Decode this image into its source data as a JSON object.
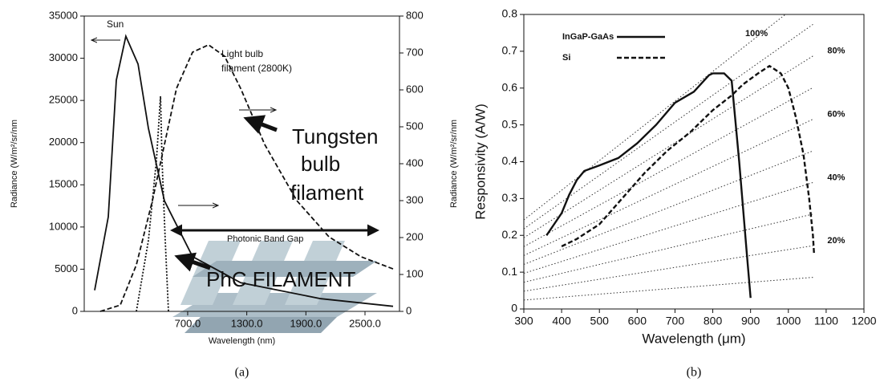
{
  "chart_data": [
    {
      "type": "line",
      "caption": "(a)",
      "xlabel": "Wavelength (nm)",
      "ylabel": "Radiance (W/m²/sr/nm",
      "y2label": "Radiance (W/m²/sr/nm",
      "xlim": [
        -350,
        2850
      ],
      "xticks": [
        {
          "value": 700,
          "label": "700.0"
        },
        {
          "value": 1300,
          "label": "1300.0"
        },
        {
          "value": 1900,
          "label": "1900.0"
        },
        {
          "value": 2500,
          "label": "2500.0"
        }
      ],
      "ylim": [
        0,
        35000
      ],
      "yticks": [
        0,
        5000,
        10000,
        15000,
        20000,
        25000,
        30000,
        35000
      ],
      "y2lim": [
        0,
        800
      ],
      "y2ticks": [
        0,
        100,
        200,
        300,
        400,
        500,
        600,
        700,
        800
      ],
      "annotations": [
        "Sun",
        "Light bulb",
        "filament (2800K)",
        "Tungsten",
        "bulb",
        "filament",
        "Photonic Band Gap",
        "PhC FILAMENT"
      ],
      "series": [
        {
          "color": "#111111",
          "style": "solid",
          "x": [
            -244,
            -106,
            -24,
            73,
            196,
            301,
            464,
            749,
            1238,
            2052,
            2785
          ],
          "values": [
            2500,
            11200,
            27400,
            32600,
            29300,
            21700,
            13100,
            6500,
            3400,
            1500,
            600
          ]
        },
        {
          "color": "#111111",
          "style": "dashed",
          "axis": "y2",
          "x": [
            -187,
            16,
            179,
            342,
            464,
            586,
            749,
            912,
            1075,
            1238,
            1482,
            1808,
            2134,
            2459,
            2785
          ],
          "values": [
            0,
            17,
            126,
            300,
            452,
            604,
            702,
            722,
            691,
            604,
            452,
            300,
            202,
            148,
            115
          ]
        },
        {
          "color": "#111111",
          "style": "dotted",
          "x": [
            179,
            301,
            383,
            424,
            440,
            472,
            505
          ],
          "values": [
            0,
            8400,
            17900,
            25500,
            17900,
            8400,
            0
          ]
        }
      ]
    },
    {
      "type": "line",
      "caption": "(b)",
      "xlabel": "Wavelength (μm)",
      "ylabel": "Responsivity (A/W)",
      "xlim": [
        300,
        1200
      ],
      "xticks": [
        300,
        400,
        500,
        600,
        700,
        800,
        900,
        1000,
        1100,
        1200
      ],
      "ylim": [
        0,
        0.8
      ],
      "yticks": [
        0,
        0.1,
        0.2,
        0.3,
        0.4,
        0.5,
        0.6,
        0.7,
        0.8
      ],
      "legend": "upper left",
      "efficiency": [
        10,
        20,
        30,
        40,
        50,
        60,
        70,
        80,
        90,
        100
      ],
      "efficiency_labels": [
        null,
        "20%",
        null,
        "40%",
        null,
        "60%",
        null,
        "80%",
        null,
        "100%"
      ],
      "efficiency_wavelength_range": [
        300,
        1065
      ],
      "series": [
        {
          "name": "InGaP-GaAs",
          "color": "#111111",
          "style": "solid",
          "x": [
            360,
            380,
            400,
            420,
            440,
            460,
            500,
            550,
            600,
            650,
            700,
            750,
            790,
            800,
            830,
            850,
            870,
            890,
            900
          ],
          "values": [
            0.2,
            0.23,
            0.26,
            0.31,
            0.35,
            0.375,
            0.39,
            0.41,
            0.45,
            0.5,
            0.56,
            0.59,
            0.635,
            0.64,
            0.64,
            0.62,
            0.4,
            0.15,
            0.03
          ]
        },
        {
          "name": "Si",
          "color": "#111111",
          "style": "dashed",
          "x": [
            400,
            440,
            500,
            560,
            620,
            680,
            740,
            800,
            850,
            880,
            920,
            950,
            980,
            1000,
            1020,
            1040,
            1055,
            1065,
            1068
          ],
          "values": [
            0.17,
            0.19,
            0.23,
            0.3,
            0.37,
            0.43,
            0.48,
            0.54,
            0.58,
            0.61,
            0.64,
            0.66,
            0.64,
            0.6,
            0.52,
            0.42,
            0.3,
            0.2,
            0.15
          ]
        }
      ]
    }
  ]
}
